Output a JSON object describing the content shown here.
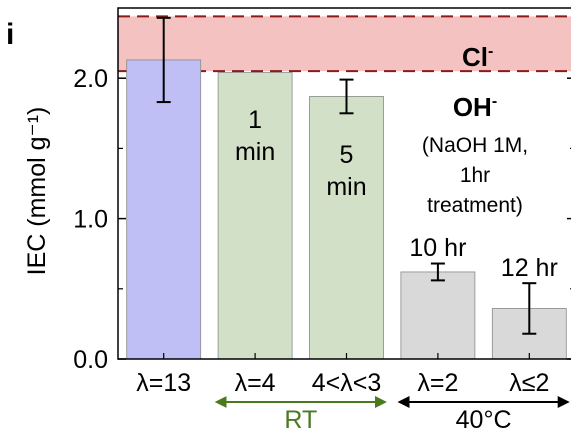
{
  "chart_data": {
    "type": "bar",
    "panel_label": "i",
    "ylabel": "IEC (mmol g⁻¹)",
    "ylim": [
      0,
      2.5
    ],
    "yticks": [
      0.0,
      1.0,
      2.0
    ],
    "ytick_labels": [
      "0.0",
      "1.0",
      "2.0"
    ],
    "categories": [
      "λ=13",
      "λ=4",
      "4<λ<3",
      "λ=2",
      "λ≤2"
    ],
    "values": [
      2.13,
      2.04,
      1.87,
      0.62,
      0.36
    ],
    "errors": [
      0.3,
      0,
      0.12,
      0.06,
      0.18
    ],
    "bar_colors": [
      "#bfbff5",
      "#d3e0c8",
      "#d3e0c8",
      "#d9d9d9",
      "#d9d9d9"
    ],
    "bar_labels": [
      {
        "lines": [
          ""
        ]
      },
      {
        "lines": [
          "1",
          "min"
        ]
      },
      {
        "lines": [
          "5",
          "min"
        ]
      },
      {
        "lines": [
          "10 hr"
        ]
      },
      {
        "lines": [
          "12 hr"
        ]
      }
    ],
    "band": {
      "label": "Cl",
      "label_sup": "-",
      "ymin": 2.05,
      "ymax": 2.44,
      "color": "#f5c2c2",
      "line_color": "#8b1a1a"
    },
    "oh_annotation": {
      "title": "OH",
      "title_sup": "-",
      "lines": [
        "(NaOH 1M,",
        "1hr",
        "treatment)"
      ]
    },
    "groups": [
      {
        "label": "RT",
        "from": 1,
        "to": 2,
        "color": "#4a7a1e"
      },
      {
        "label": "40°C",
        "from": 3,
        "to": 4,
        "color": "#000000"
      }
    ]
  }
}
